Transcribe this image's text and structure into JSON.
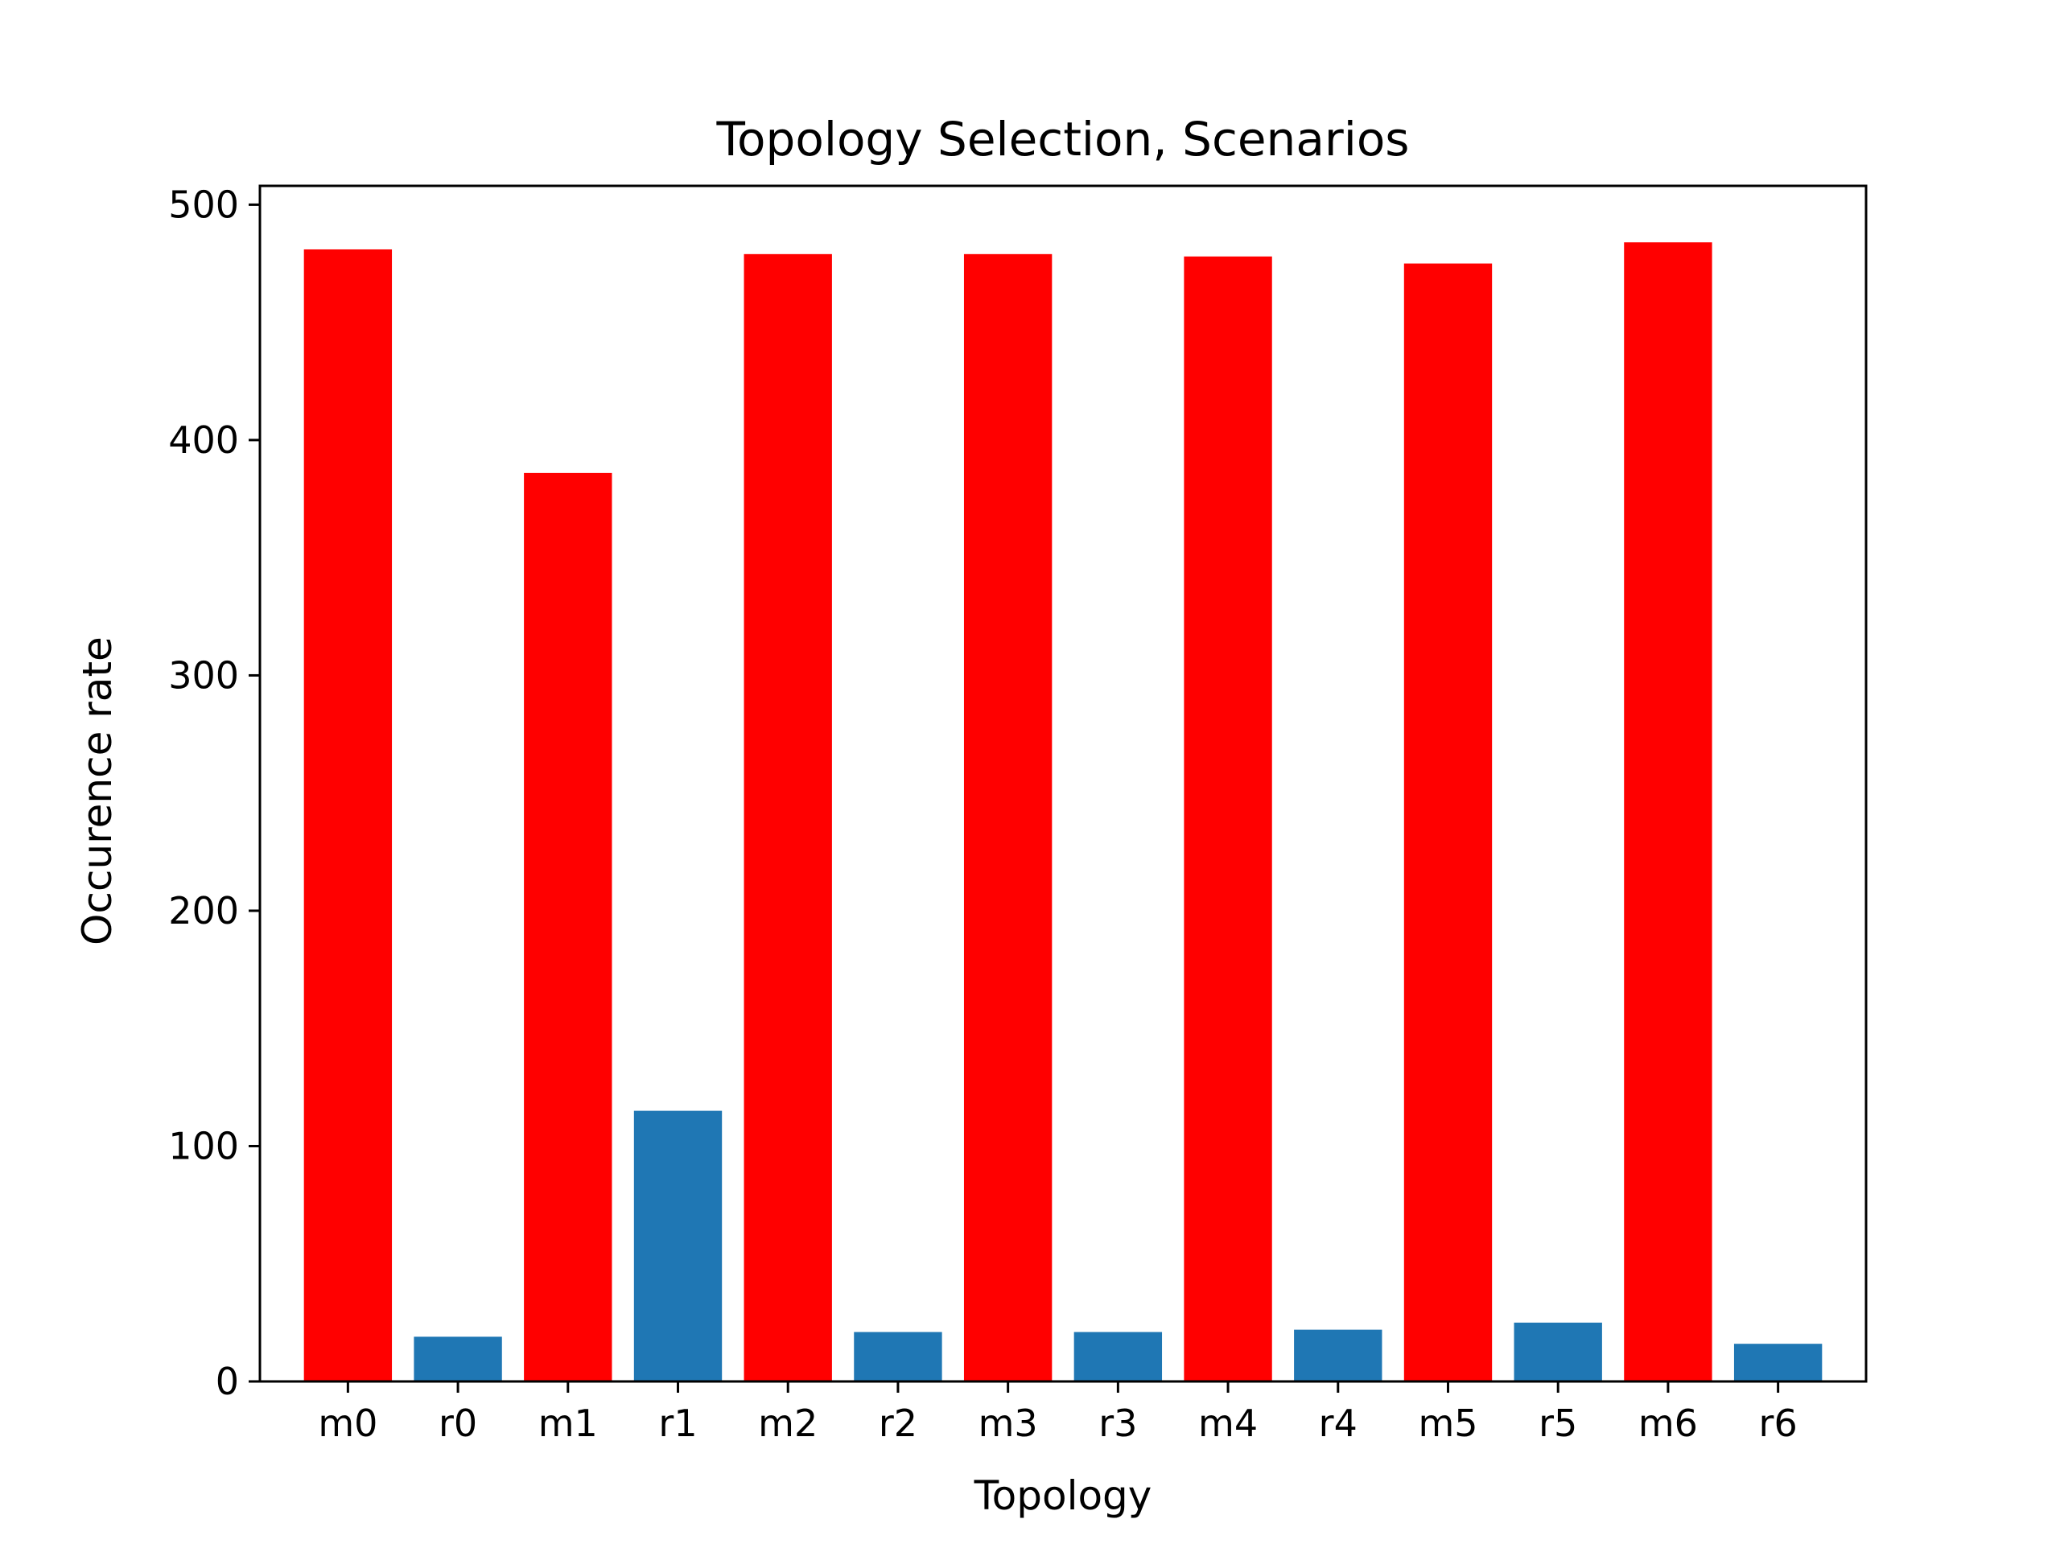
{
  "chart_data": {
    "type": "bar",
    "title": "Topology Selection, Scenarios",
    "xlabel": "Topology",
    "ylabel": "Occurence rate",
    "categories": [
      "m0",
      "r0",
      "m1",
      "r1",
      "m2",
      "r2",
      "m3",
      "r3",
      "m4",
      "r4",
      "m5",
      "r5",
      "m6",
      "r6"
    ],
    "values": [
      481,
      19,
      386,
      115,
      479,
      21,
      479,
      21,
      478,
      22,
      475,
      25,
      484,
      16
    ],
    "bar_colors": [
      "#ff0000",
      "#1f77b4",
      "#ff0000",
      "#1f77b4",
      "#ff0000",
      "#1f77b4",
      "#ff0000",
      "#1f77b4",
      "#ff0000",
      "#1f77b4",
      "#ff0000",
      "#1f77b4",
      "#ff0000",
      "#1f77b4"
    ],
    "ylim": [
      0,
      508
    ],
    "yticks": [
      0,
      100,
      200,
      300,
      400,
      500
    ],
    "grid": false,
    "legend": "none"
  }
}
